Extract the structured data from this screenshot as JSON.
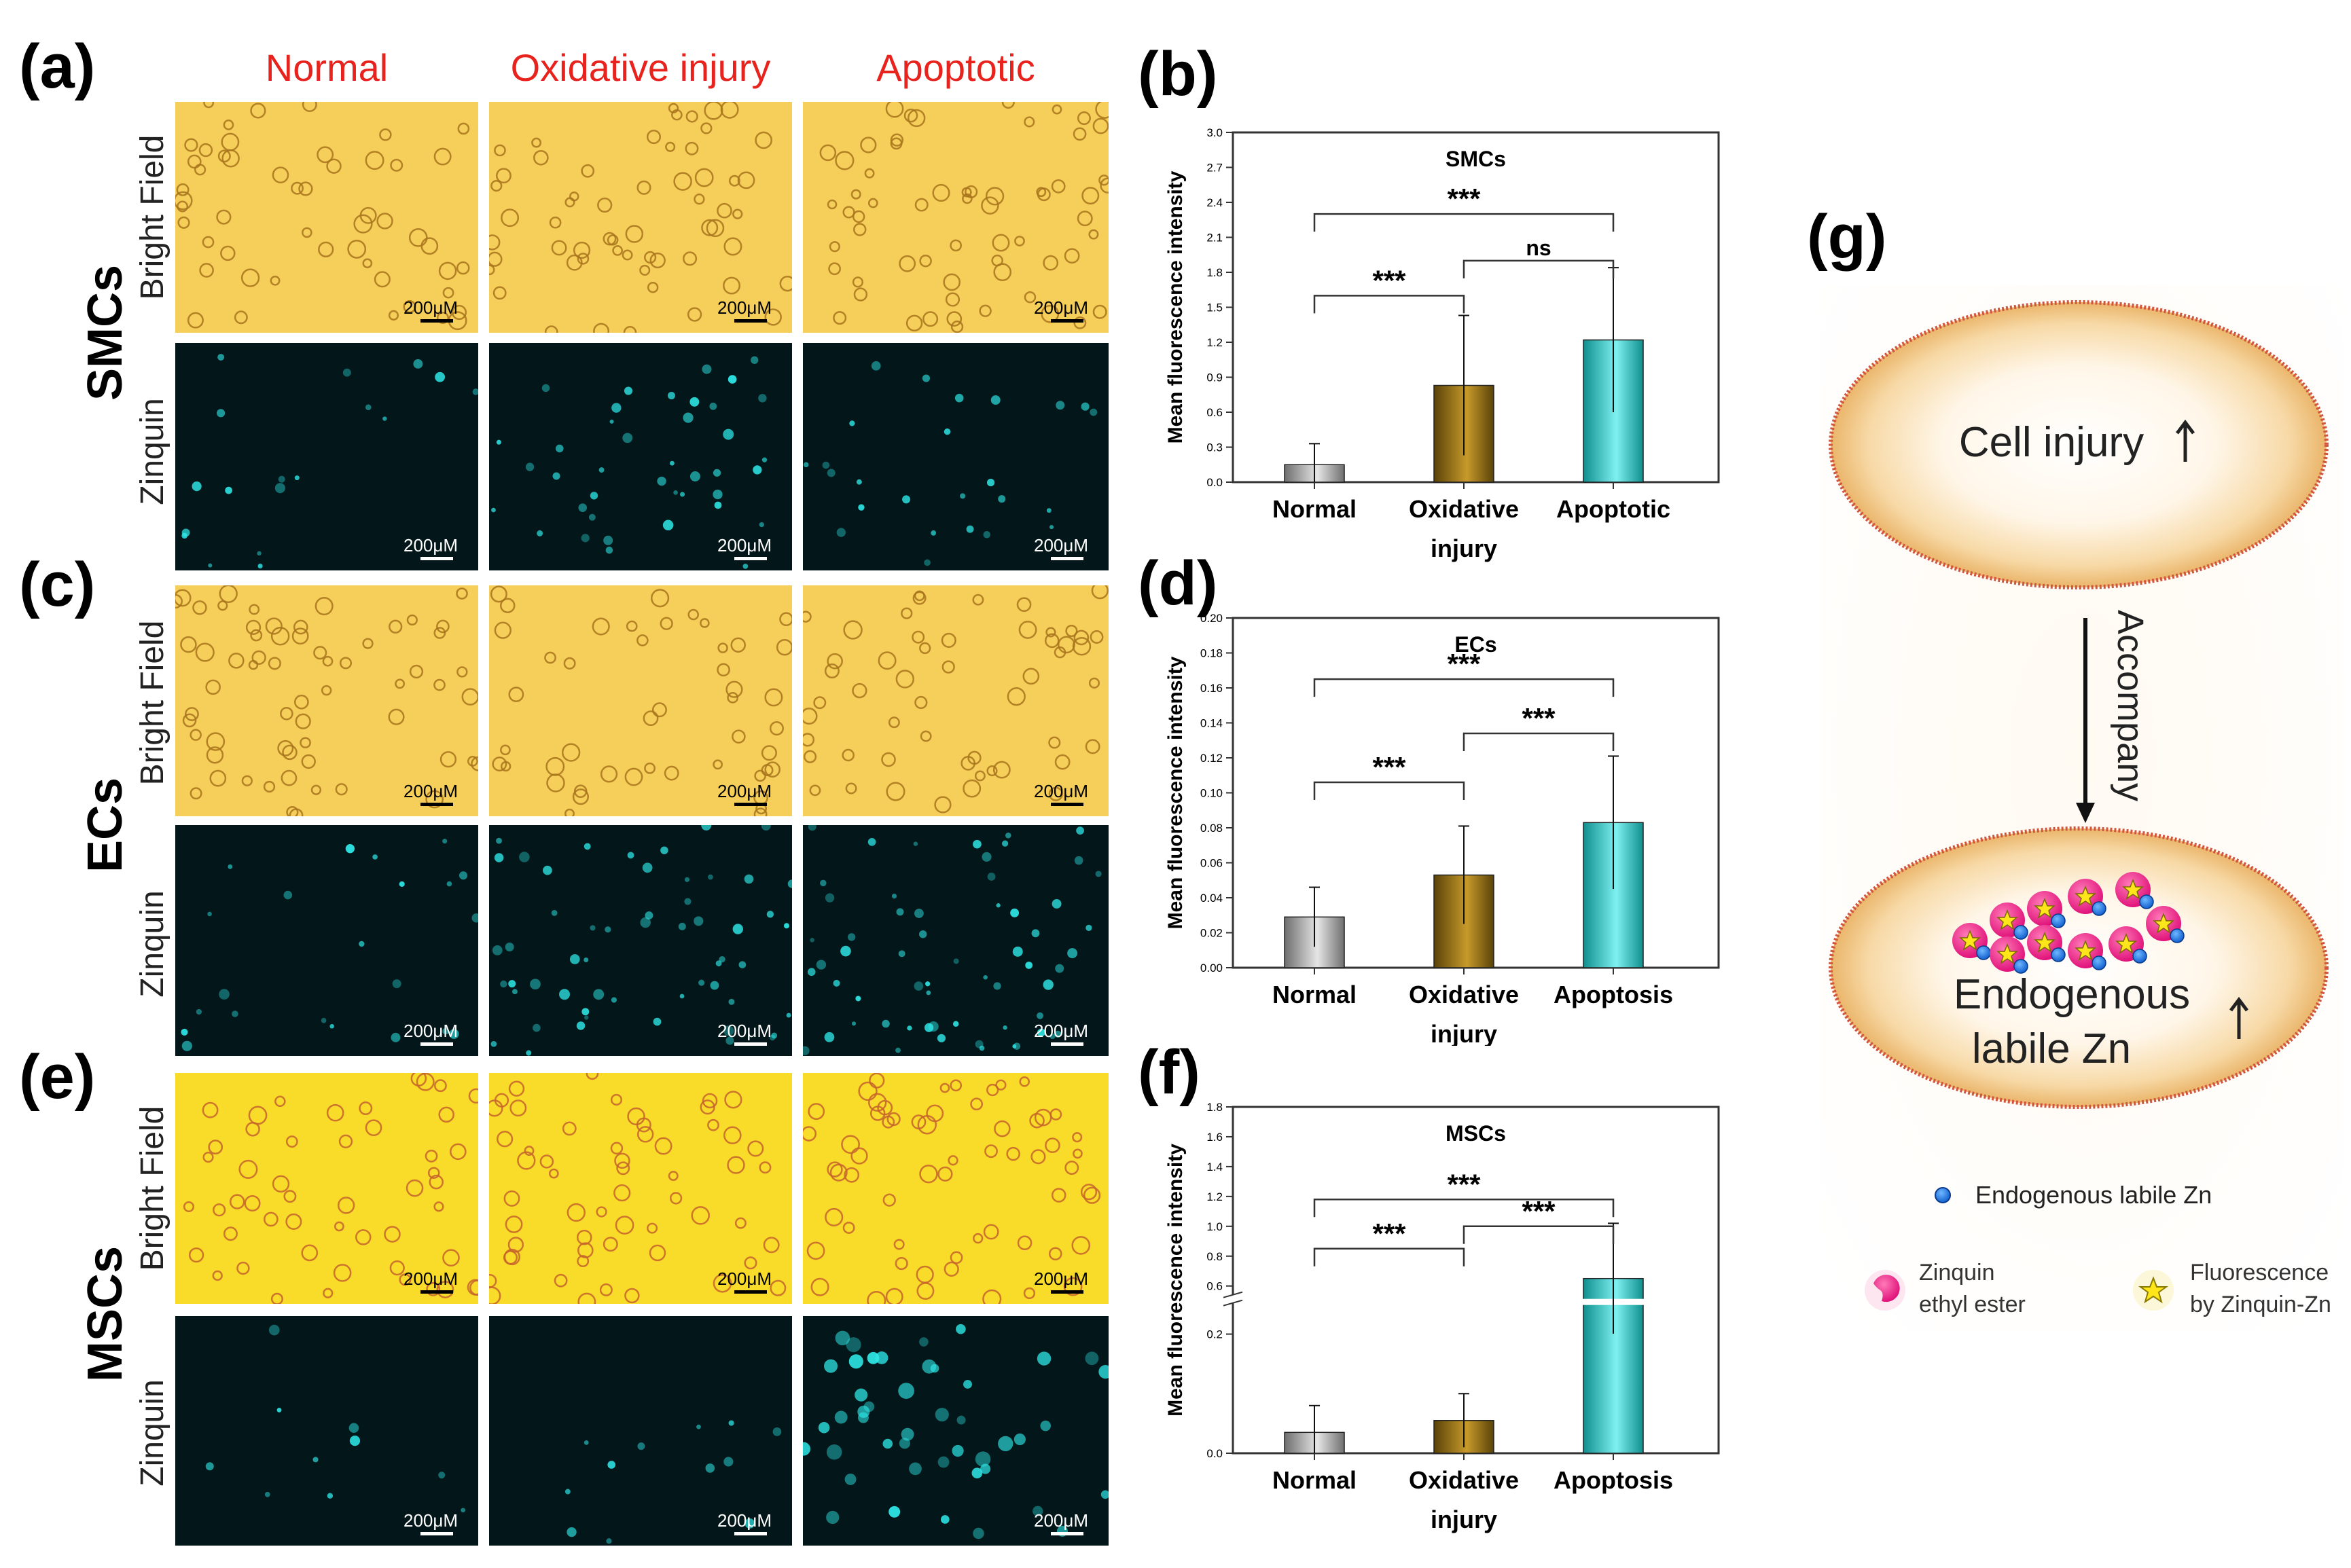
{
  "left_panels": {
    "column_headers": [
      "Normal",
      "Oxidative injury",
      "Apoptotic"
    ],
    "row_labels": {
      "bright": "Bright Field",
      "zinquin": "Zinquin"
    },
    "scale_bar_label": "200μM",
    "groups": [
      {
        "letter": "(a)",
        "cell": "SMCs"
      },
      {
        "letter": "(c)",
        "cell": "ECs"
      },
      {
        "letter": "(e)",
        "cell": "MSCs"
      }
    ]
  },
  "colors": {
    "normal_bar": "#9a9a9a",
    "oxidative_bar": "#8a6a10",
    "apoptotic_bar": "#1bb8b8",
    "header_red": "#e8221c",
    "micro_yellow": "#f5cf5a",
    "micro_dark": "#03171a",
    "fluor_cyan": "#2ee6e6"
  },
  "chart_data": [
    {
      "letter": "(b)",
      "type": "bar",
      "title": "SMCs",
      "ylabel": "Mean fluorescence intensity",
      "categories": [
        [
          "Normal"
        ],
        [
          "Oxidative",
          "injury"
        ],
        [
          "Apoptotic"
        ]
      ],
      "values": [
        0.15,
        0.83,
        1.22
      ],
      "errors": [
        0.18,
        0.6,
        0.62
      ],
      "ylim": [
        0,
        3.0
      ],
      "yticks": [
        "0.0",
        "0.3",
        "0.6",
        "0.9",
        "1.2",
        "1.5",
        "1.8",
        "2.1",
        "2.4",
        "2.7",
        "3.0"
      ],
      "brackets": [
        {
          "from": 0,
          "to": 1,
          "y": 1.6,
          "label": "***"
        },
        {
          "from": 1,
          "to": 2,
          "y": 1.9,
          "label": "ns"
        },
        {
          "from": 0,
          "to": 2,
          "y": 2.3,
          "label": "***"
        }
      ]
    },
    {
      "letter": "(d)",
      "type": "bar",
      "title": "ECs",
      "ylabel": "Mean fluorescence intensity",
      "categories": [
        [
          "Normal"
        ],
        [
          "Oxidative",
          "injury"
        ],
        [
          "Apoptosis"
        ]
      ],
      "values": [
        0.029,
        0.053,
        0.083
      ],
      "errors": [
        0.017,
        0.028,
        0.038
      ],
      "ylim": [
        0,
        0.2
      ],
      "yticks": [
        "0.00",
        "0.02",
        "0.04",
        "0.06",
        "0.08",
        "0.10",
        "0.12",
        "0.14",
        "0.16",
        "0.18",
        "0.20"
      ],
      "brackets": [
        {
          "from": 0,
          "to": 1,
          "y": 0.106,
          "label": "***"
        },
        {
          "from": 1,
          "to": 2,
          "y": 0.134,
          "label": "***"
        },
        {
          "from": 0,
          "to": 2,
          "y": 0.165,
          "label": "***"
        }
      ]
    },
    {
      "letter": "(f)",
      "type": "bar",
      "title": "MSCs",
      "ylabel": "Mean fluorescence intensity",
      "categories": [
        [
          "Normal"
        ],
        [
          "Oxidative",
          "injury"
        ],
        [
          "Apoptosis"
        ]
      ],
      "values": [
        0.035,
        0.055,
        0.65
      ],
      "errors": [
        0.045,
        0.045,
        0.37
      ],
      "axis_break": {
        "lower_max": 0.25,
        "upper_min": 0.55,
        "upper_max": 1.8
      },
      "yticks_lower": [
        "0.0",
        "0.2"
      ],
      "yticks_upper": [
        "0.6",
        "0.8",
        "1.0",
        "1.2",
        "1.4",
        "1.6",
        "1.8"
      ],
      "brackets": [
        {
          "from": 0,
          "to": 1,
          "y": 0.85,
          "label": "***"
        },
        {
          "from": 1,
          "to": 2,
          "y": 1.0,
          "label": "***"
        },
        {
          "from": 0,
          "to": 2,
          "y": 1.18,
          "label": "***"
        }
      ]
    }
  ],
  "schematic": {
    "letter": "(g)",
    "top_text": "Cell injury",
    "arrow_label": "Accompany",
    "bottom_text_line1": "Endogenous",
    "bottom_text_line2": "labile Zn",
    "legend": {
      "zn": "Endogenous labile Zn",
      "zinquin_line1": "Zinquin",
      "zinquin_line2": "ethyl ester",
      "fluor_line1": "Fluorescence",
      "fluor_line2": "by Zinquin-Zn"
    }
  }
}
